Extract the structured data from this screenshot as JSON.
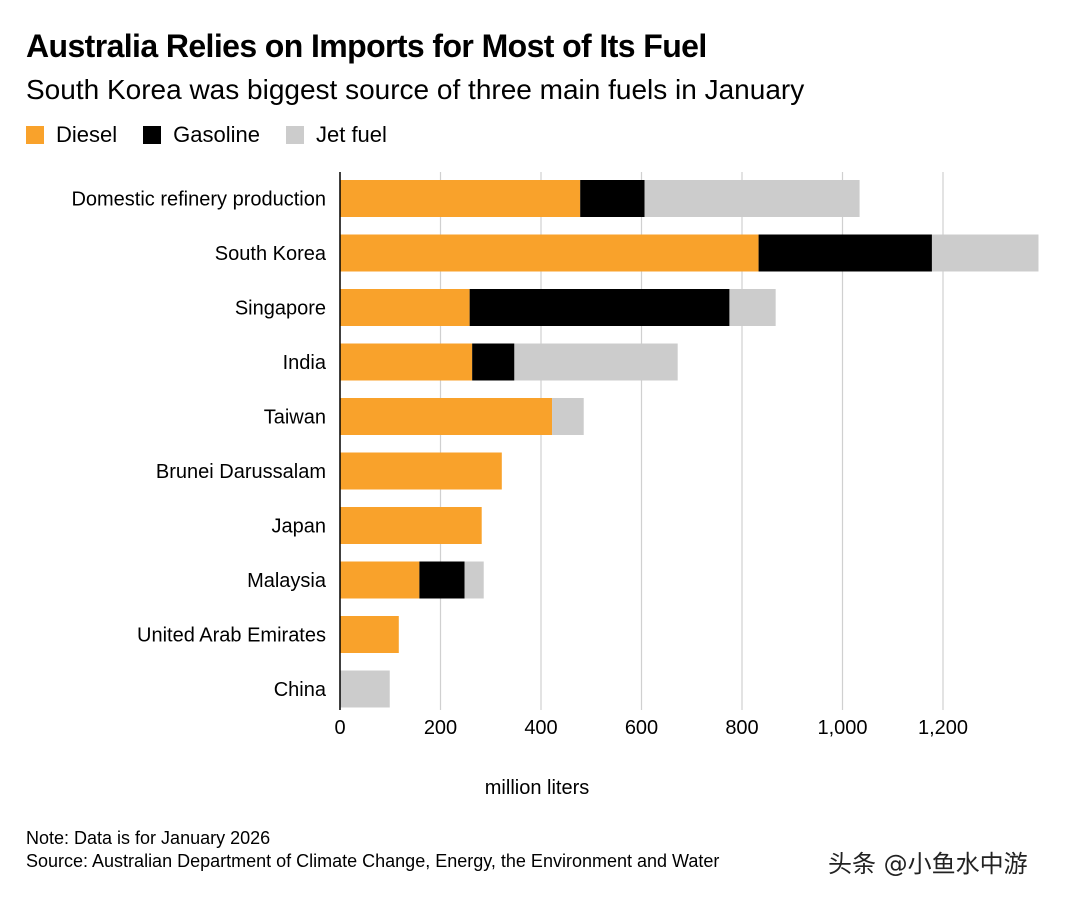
{
  "header": {
    "title": "Australia Relies on Imports for Most of Its Fuel",
    "subtitle": "South Korea was biggest source of three main fuels in January"
  },
  "legend": [
    {
      "label": "Diesel",
      "color": "#f9a22b"
    },
    {
      "label": "Gasoline",
      "color": "#000000"
    },
    {
      "label": "Jet fuel",
      "color": "#cccccc"
    }
  ],
  "chart_data": {
    "type": "bar",
    "orientation": "horizontal",
    "stacked": true,
    "title": "Australia Relies on Imports for Most of Its Fuel",
    "subtitle": "South Korea was biggest source of three main fuels in January",
    "xlabel": "million liters",
    "ylabel": "",
    "xlim": [
      0,
      1400
    ],
    "xticks": [
      0,
      200,
      400,
      600,
      800,
      1000,
      1200
    ],
    "xtick_labels": [
      "0",
      "200",
      "400",
      "600",
      "800",
      "1,000",
      "1,200"
    ],
    "grid": true,
    "legend_position": "top-left",
    "categories": [
      "Domestic refinery production",
      "South Korea",
      "Singapore",
      "India",
      "Taiwan",
      "Brunei Darussalam",
      "Japan",
      "Malaysia",
      "United Arab Emirates",
      "China"
    ],
    "series": [
      {
        "name": "Diesel",
        "color": "#f9a22b",
        "values": [
          478,
          833,
          258,
          263,
          422,
          322,
          282,
          158,
          117,
          0
        ]
      },
      {
        "name": "Gasoline",
        "color": "#000000",
        "values": [
          128,
          345,
          517,
          84,
          0,
          0,
          0,
          90,
          0,
          0
        ]
      },
      {
        "name": "Jet fuel",
        "color": "#cccccc",
        "values": [
          428,
          212,
          92,
          325,
          63,
          0,
          0,
          38,
          0,
          99
        ]
      }
    ]
  },
  "footer": {
    "note": "Note: Data is for January 2026",
    "source": "Source: Australian Department of Climate Change, Energy, the Environment and Water",
    "watermark": "头条 @小鱼水中游"
  }
}
